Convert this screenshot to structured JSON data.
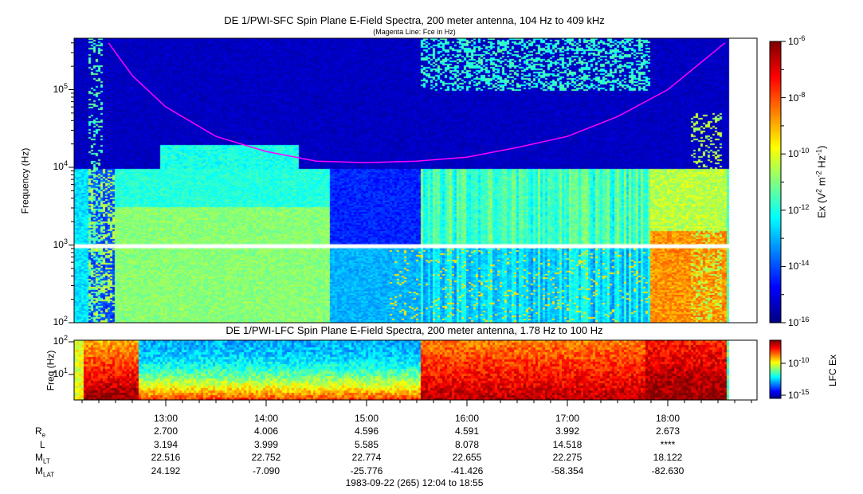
{
  "chart_data": [
    {
      "type": "heatmap",
      "title": "DE 1/PWI-SFC  Spin Plane E-Field Spectra, 200 meter antenna, 104 Hz to 409 kHz",
      "subtitle": "(Magenta Line: Fce in Hz)",
      "ylabel": "Frequency (Hz)",
      "yscale": "log",
      "ylim": [
        100,
        409000
      ],
      "yticks": [
        "10^2",
        "10^3",
        "10^4",
        "10^5"
      ],
      "colorbar": {
        "label": "Ex (V^2 m^-2 Hz^-1)",
        "range": [
          1e-16,
          1e-06
        ],
        "ticks": [
          "10^-6",
          "10^-8",
          "10^-10",
          "10^-12",
          "10^-14",
          "10^-16"
        ],
        "colormap": "jet"
      },
      "fce_line": {
        "name": "Fce",
        "color": "#ff00ff",
        "time_hours": [
          12.43,
          12.67,
          13.0,
          13.5,
          14.0,
          14.5,
          15.0,
          15.5,
          16.0,
          16.5,
          17.0,
          17.5,
          18.0,
          18.57
        ],
        "values_hz": [
          400000,
          150000,
          60000,
          25000,
          16000,
          12000,
          11500,
          12000,
          13500,
          18000,
          25000,
          45000,
          100000,
          400000
        ]
      }
    },
    {
      "type": "heatmap",
      "title": "DE 1/PWI-LFC  Spin Plane E-Field Spectra, 200 meter antenna, 1.78 Hz to 100 Hz",
      "ylabel": "Freq (Hz)",
      "yscale": "log",
      "ylim": [
        1.78,
        100
      ],
      "yticks": [
        "10^1",
        "10^2"
      ],
      "colorbar": {
        "label": "LFC Ex",
        "ticks": [
          "10^-10",
          "10^-15"
        ],
        "colormap": "jet"
      }
    }
  ],
  "xaxis": {
    "ticks": [
      "13:00",
      "14:00",
      "15:00",
      "16:00",
      "17:00",
      "18:00"
    ],
    "rows": [
      {
        "label": "R",
        "sub": "e",
        "values": [
          "2.700",
          "4.006",
          "4.596",
          "4.591",
          "3.992",
          "2.673"
        ]
      },
      {
        "label": "L",
        "sub": "",
        "values": [
          "3.194",
          "3.999",
          "5.585",
          "8.078",
          "14.518",
          "****"
        ]
      },
      {
        "label": "M",
        "sub": "LT",
        "values": [
          "22.516",
          "22.752",
          "22.774",
          "22.655",
          "22.275",
          "18.122"
        ]
      },
      {
        "label": "M",
        "sub": "LAT",
        "values": [
          "24.192",
          "-7.090",
          "-25.776",
          "-41.426",
          "-58.354",
          "-82.630"
        ]
      }
    ],
    "footer": "1983-09-22 (265) 12:04 to 18:55"
  }
}
